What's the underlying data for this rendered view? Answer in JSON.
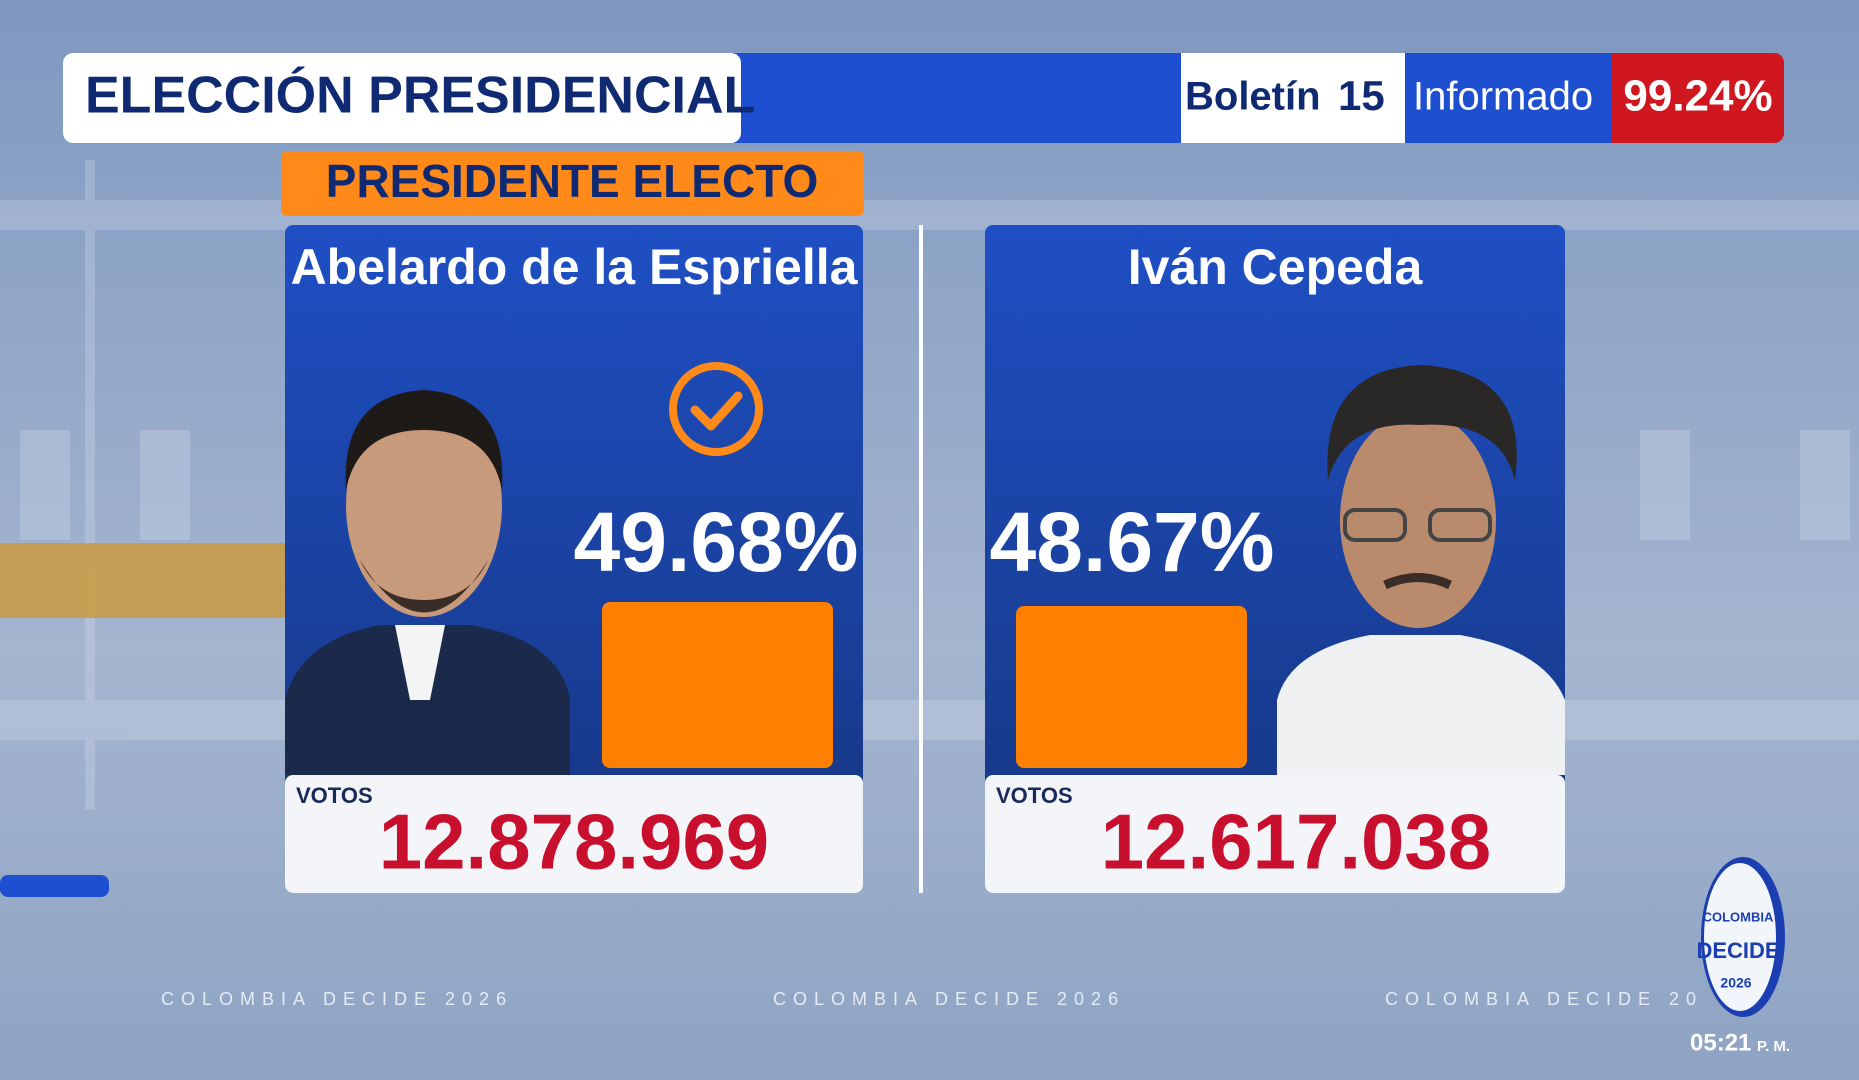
{
  "header": {
    "title": "ELECCIÓN PRESIDENCIAL",
    "bulletin_label": "Boletín",
    "bulletin_number": "15",
    "reported_label": "Informado",
    "reported_value": "99.24%"
  },
  "badge": "PRESIDENTE ELECTO",
  "candidates": [
    {
      "name": "Abelardo de la Espriella",
      "percent": "49.68%",
      "votes_label": "VOTOS",
      "votes": "12.878.969"
    },
    {
      "name": "Iván Cepeda",
      "percent": "48.67%",
      "votes_label": "VOTOS",
      "votes": "12.617.038"
    }
  ],
  "footer": {
    "texts": [
      "COLOMBIA DECIDE 2026",
      "COLOMBIA DECIDE 2026",
      "COLOMBIA DECIDE 20"
    ],
    "logo_lines": [
      "COLOMBIA",
      "DECIDE",
      "2026"
    ],
    "time": "05:21",
    "meridiem": "P. M."
  }
}
